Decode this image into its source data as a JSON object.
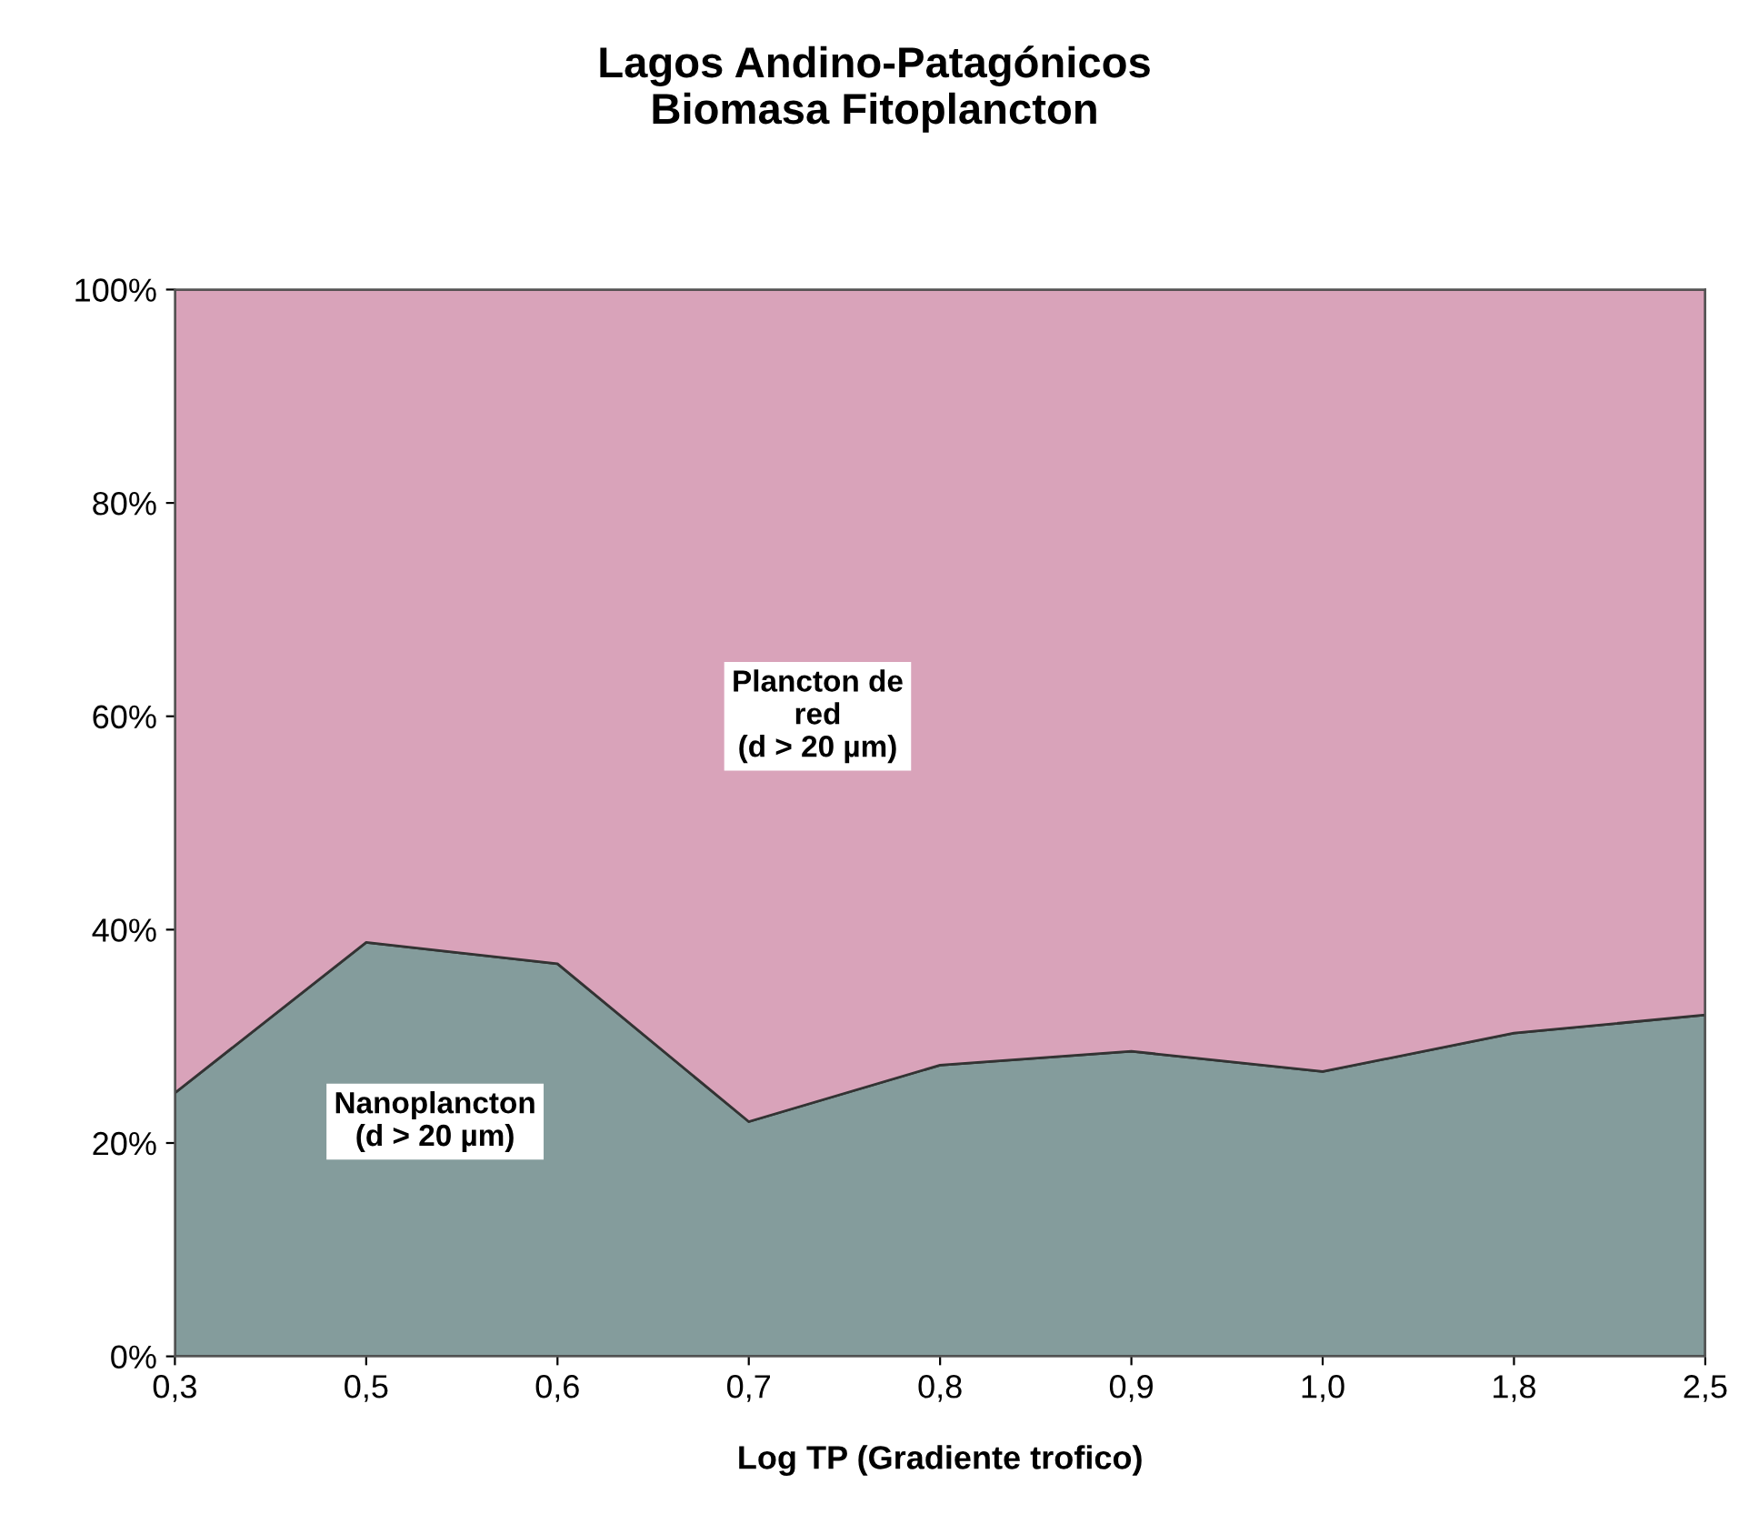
{
  "chart_data": {
    "type": "area",
    "title": "Lagos Andino-Patagónicos\nBiomasa Fitoplancton",
    "xlabel": "Log TP (Gradiente trofico)",
    "categories": [
      "0,3",
      "0,5",
      "0,6",
      "0,7",
      "0,8",
      "0,9",
      "1,0",
      "1,8",
      "2,5"
    ],
    "stacked": true,
    "series": [
      {
        "name": "Nanoplancton\n(d > 20 µm)",
        "color": "#849c9c",
        "values": [
          24.7,
          38.8,
          36.8,
          22,
          27.3,
          28.6,
          26.7,
          30.3,
          32
        ]
      },
      {
        "name": "Plancton de\nred\n(d > 20 µm)",
        "color": "#d9a3ba",
        "values": [
          75.3,
          61.2,
          63.2,
          78,
          72.7,
          71.4,
          73.3,
          69.7,
          68
        ]
      }
    ],
    "ylim": [
      0,
      100
    ],
    "yticks": [
      {
        "value": 0,
        "label": "0%"
      },
      {
        "value": 20,
        "label": "20%"
      },
      {
        "value": 40,
        "label": "40%"
      },
      {
        "value": 60,
        "label": "60%"
      },
      {
        "value": 80,
        "label": "80%"
      },
      {
        "value": 100,
        "label": "100%"
      }
    ],
    "grid": false,
    "legend": false
  }
}
